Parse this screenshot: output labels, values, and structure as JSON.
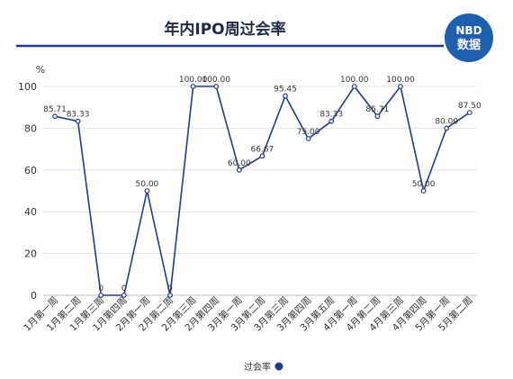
{
  "header": {
    "title": "年内IPO周过会率",
    "badge_line1": "NBD",
    "badge_line2": "数据"
  },
  "colors": {
    "line": "#1f3a8a",
    "title_rule": "#1f3a8a",
    "badge": "#1f5fb0",
    "grid": "#e3e3e3"
  },
  "chart_data": {
    "type": "line",
    "ylabel": "%",
    "ylim": [
      0,
      100
    ],
    "yticks": [
      0,
      20,
      40,
      60,
      80,
      100
    ],
    "grid": "horizontal",
    "legend_position": "bottom-center",
    "categories": [
      "1月第一周",
      "1月第二周",
      "1月第三周",
      "1月第四周",
      "2月第一周",
      "2月第二周",
      "2月第三周",
      "2月第四周",
      "3月第一周",
      "3月第二周",
      "3月第三周",
      "3月第四周",
      "3月第五周",
      "4月第一周",
      "4月第二周",
      "4月第三周",
      "4月第四周",
      "5月第一周",
      "5月第二周"
    ],
    "series": [
      {
        "name": "过会率",
        "values": [
          85.71,
          83.33,
          0,
          0,
          50.0,
          0,
          100.0,
          100.0,
          60.0,
          66.67,
          95.45,
          75.0,
          83.33,
          100.0,
          85.71,
          100.0,
          50.0,
          80.0,
          87.5
        ],
        "labels": [
          "85.71",
          "83.33",
          "0",
          "0",
          "50.00",
          "0",
          "100.00",
          "100.00",
          "60.00",
          "66.67",
          "95.45",
          "75.00",
          "83.33",
          "100.00",
          "85.71",
          "100.00",
          "50.00",
          "80.00",
          "87.50"
        ]
      }
    ]
  }
}
